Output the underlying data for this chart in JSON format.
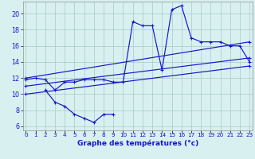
{
  "line1_x": [
    0,
    1,
    2,
    3,
    4,
    5,
    6,
    7,
    8,
    9,
    10,
    11,
    12,
    13,
    14,
    15,
    16,
    17,
    18,
    19,
    20,
    21,
    22,
    23
  ],
  "line1_y": [
    11.8,
    12.0,
    11.8,
    10.5,
    11.5,
    11.5,
    11.8,
    11.8,
    11.8,
    11.5,
    11.5,
    19.0,
    18.5,
    18.5,
    13.0,
    20.5,
    21.0,
    17.0,
    16.5,
    16.5,
    16.5,
    16.0,
    16.0,
    14.0
  ],
  "line2_x": [
    0,
    23
  ],
  "line2_y": [
    12.0,
    16.5
  ],
  "line3_x": [
    0,
    23
  ],
  "line3_y": [
    11.0,
    14.5
  ],
  "line4_x": [
    0,
    23
  ],
  "line4_y": [
    10.0,
    13.5
  ],
  "line5_x": [
    2,
    3,
    4,
    5,
    6,
    7,
    8,
    9
  ],
  "line5_y": [
    10.5,
    9.0,
    8.5,
    7.5,
    7.0,
    6.5,
    7.5,
    7.5
  ],
  "bg_color": "#d8f0f0",
  "line_color": "#1515cc",
  "grid_color": "#aac8c8",
  "xlabel": "Graphe des températures (°c)",
  "xticks": [
    0,
    1,
    2,
    3,
    4,
    5,
    6,
    7,
    8,
    9,
    10,
    11,
    12,
    13,
    14,
    15,
    16,
    17,
    18,
    19,
    20,
    21,
    22,
    23
  ],
  "yticks": [
    6,
    8,
    10,
    12,
    14,
    16,
    18,
    20
  ],
  "ylim": [
    5.5,
    21.5
  ],
  "xlim": [
    -0.3,
    23.3
  ]
}
